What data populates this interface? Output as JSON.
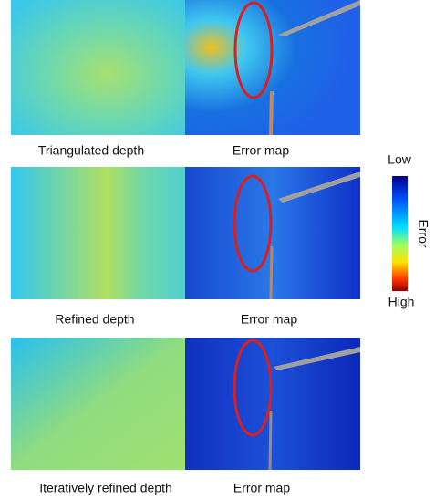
{
  "rows": [
    {
      "depth_label": "Triangulated depth",
      "error_label": "Error map"
    },
    {
      "depth_label": "Refined depth",
      "error_label": "Error map"
    },
    {
      "depth_label": "Iteratively refined depth",
      "error_label": "Error map"
    }
  ],
  "colorbar": {
    "low": "Low",
    "high": "High",
    "title": "Error"
  }
}
